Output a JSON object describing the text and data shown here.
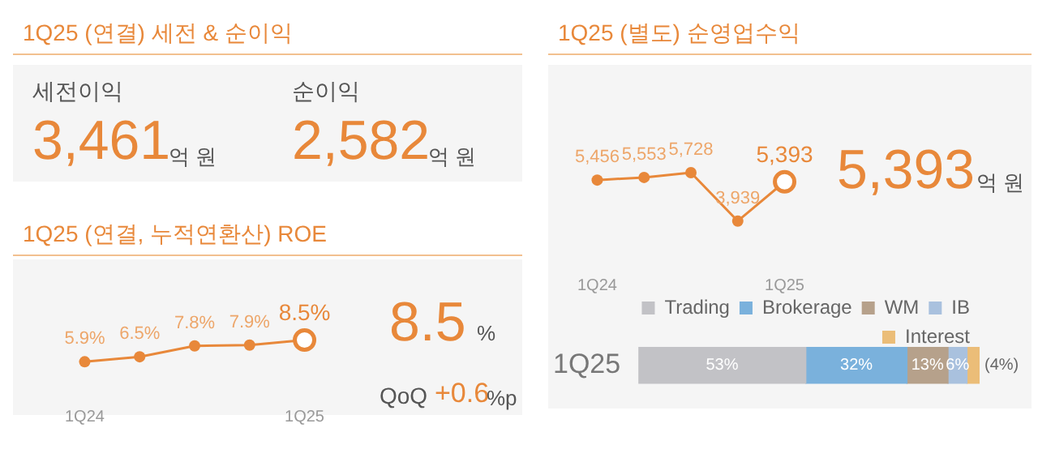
{
  "chart_data": [
    {
      "type": "other",
      "title": "1Q25 (연결) 세전 & 순이익",
      "annotations": [
        "세전이익",
        "3,461",
        "억 원",
        "순이익",
        "2,582",
        "억 원"
      ]
    },
    {
      "type": "line",
      "title": "1Q25 (연결, 누적연환산) ROE",
      "categories": [
        "1Q24",
        null,
        null,
        null,
        "1Q25"
      ],
      "values": [
        5.9,
        6.5,
        7.8,
        7.9,
        8.5
      ],
      "value_labels": [
        "5.9%",
        "6.5%",
        "7.8%",
        "7.9%",
        "8.5%"
      ],
      "color": "#e8883a",
      "marker": "circle",
      "tick_labels": "x",
      "annotations": [
        "8.5",
        "%",
        "QoQ",
        "+0.6",
        "%p"
      ]
    },
    {
      "type": "line",
      "title": "1Q25 (별도) 순영업수익",
      "categories": [
        "1Q24",
        null,
        null,
        null,
        "1Q25"
      ],
      "values": [
        5456,
        5553,
        5728,
        3939,
        5393
      ],
      "value_labels": [
        "5,456",
        "5,553",
        "5,728",
        "3,939",
        "5,393"
      ],
      "color": "#e8883a",
      "marker": "circle",
      "tick_labels": "x",
      "annotations": [
        "5,393",
        "억 원"
      ]
    },
    {
      "type": "bar",
      "orientation": "horizontal",
      "stacked": true,
      "categories": [
        "1Q25"
      ],
      "legend": "top",
      "tick_labels": "y",
      "series": [
        {
          "name": "Trading",
          "color": "#c2c2c6",
          "values": [
            53
          ],
          "value_labels": [
            "53%"
          ]
        },
        {
          "name": "Brokerage",
          "color": "#7ab1dc",
          "values": [
            32
          ],
          "value_labels": [
            "32%"
          ]
        },
        {
          "name": "WM",
          "color": "#b6a18b",
          "values": [
            13
          ],
          "value_labels": [
            "13%"
          ]
        },
        {
          "name": "IB",
          "color": "#a9c1de",
          "values": [
            6
          ],
          "value_labels": [
            "6%"
          ]
        },
        {
          "name": "Interest",
          "color": "#ebbd78",
          "values": [
            4
          ],
          "value_labels": [
            "(4%)"
          ]
        }
      ]
    }
  ]
}
